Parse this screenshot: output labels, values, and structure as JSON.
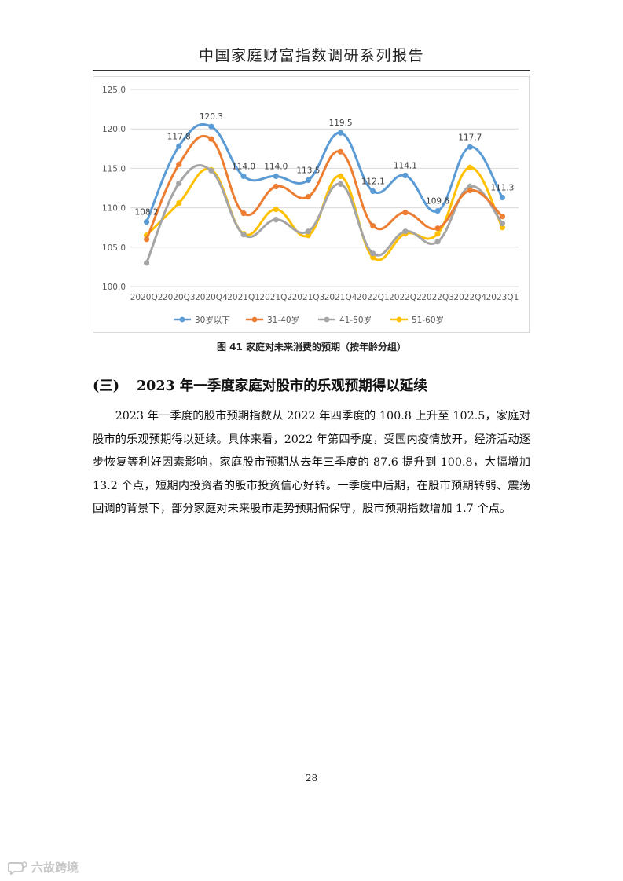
{
  "header": {
    "title": "中国家庭财富指数调研系列报告"
  },
  "chart_data": {
    "type": "line",
    "categories": [
      "2020Q2",
      "2020Q3",
      "2020Q4",
      "2021Q1",
      "2021Q2",
      "2021Q3",
      "2021Q4",
      "2022Q1",
      "2022Q2",
      "2022Q3",
      "2022Q4",
      "2023Q1"
    ],
    "ylim": [
      100.0,
      125.0
    ],
    "yticks": [
      "100.0",
      "105.0",
      "110.0",
      "115.0",
      "120.0",
      "125.0"
    ],
    "grid": true,
    "legend_position": "bottom",
    "series": [
      {
        "name": "30岁以下",
        "color": "#5b9bd5",
        "values": [
          108.2,
          117.8,
          120.3,
          114.0,
          114.0,
          113.5,
          119.5,
          112.1,
          114.1,
          109.6,
          117.7,
          111.3
        ],
        "labels": [
          "108.2",
          "117.8",
          "120.3",
          "114.0",
          "114.0",
          "113.5",
          "119.5",
          "112.1",
          "114.1",
          "109.6",
          "117.7",
          "111.3"
        ]
      },
      {
        "name": "31-40岁",
        "color": "#ed7d31",
        "values": [
          106.0,
          115.5,
          118.7,
          109.3,
          112.7,
          111.4,
          117.1,
          107.7,
          109.4,
          107.4,
          112.2,
          108.9
        ]
      },
      {
        "name": "41-50岁",
        "color": "#a5a5a5",
        "values": [
          103.0,
          113.1,
          114.7,
          106.6,
          108.5,
          107.0,
          113.0,
          104.2,
          107.0,
          105.7,
          112.7,
          108.0
        ]
      },
      {
        "name": "51-60岁",
        "color": "#ffc000",
        "values": [
          106.5,
          110.6,
          114.8,
          106.7,
          109.8,
          106.5,
          114.0,
          103.7,
          106.7,
          106.7,
          115.1,
          107.5
        ]
      }
    ]
  },
  "caption": "图 41 家庭对未来消费的预期（按年龄分组）",
  "section": {
    "number": "(三)",
    "title": "2023 年一季度家庭对股市的乐观预期得以延续"
  },
  "body_text": "2023 年一季度的股市预期指数从 2022 年四季度的 100.8 上升至 102.5，家庭对股市的乐观预期得以延续。具体来看，2022 年第四季度，受国内疫情放开，经济活动逐步恢复等利好因素影响，家庭股市预期从去年三季度的 87.6 提升到 100.8，大幅增加 13.2 个点，短期内投资者的股市投资信心好转。一季度中后期，在股市预期转弱、震荡回调的背景下，部分家庭对未来股市走势预期偏保守，股市预期指数增加 1.7 个点。",
  "page_number": "28",
  "watermark": {
    "text": "六故跨境",
    "icon": "chat-bubble-logo-icon"
  }
}
